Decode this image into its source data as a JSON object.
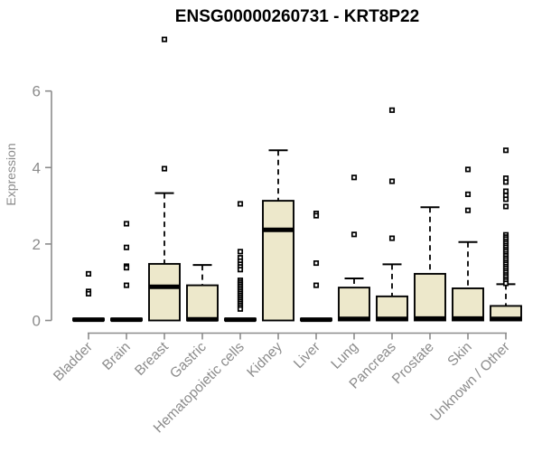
{
  "chart_data": {
    "type": "boxplot",
    "title": "ENSG00000260731 - KRT8P22",
    "ylabel": "Expression",
    "xlabel": "",
    "ylim": [
      0,
      6
    ],
    "yticks": [
      0,
      2,
      4,
      6
    ],
    "grid": false,
    "legend": false,
    "categories": [
      "Bladder",
      "Brain",
      "Breast",
      "Gastric",
      "Hematopoietic cells",
      "Kidney",
      "Liver",
      "Lung",
      "Pancreas",
      "Prostate",
      "Skin",
      "Unknown / Other"
    ],
    "boxes": [
      {
        "category": "Bladder",
        "q1": 0,
        "median": 0.02,
        "q3": 0.05,
        "whisker_low": 0,
        "whisker_high": 0.05,
        "outliers": [
          1.22,
          0.76,
          0.7
        ]
      },
      {
        "category": "Brain",
        "q1": 0,
        "median": 0.02,
        "q3": 0.05,
        "whisker_low": 0,
        "whisker_high": 0.05,
        "outliers": [
          2.53,
          1.91,
          1.42,
          1.38,
          0.92
        ]
      },
      {
        "category": "Breast",
        "q1": 0,
        "median": 0.88,
        "q3": 1.48,
        "whisker_low": 0,
        "whisker_high": 3.33,
        "outliers": [
          3.97,
          7.35
        ]
      },
      {
        "category": "Gastric",
        "q1": 0,
        "median": 0.03,
        "q3": 0.92,
        "whisker_low": 0,
        "whisker_high": 1.45,
        "outliers": []
      },
      {
        "category": "Hematopoietic cells",
        "q1": 0,
        "median": 0.02,
        "q3": 0.05,
        "whisker_low": 0,
        "whisker_high": 0.05,
        "outliers": [
          3.05,
          1.8,
          1.64,
          1.55,
          1.47,
          1.4,
          1.33,
          1.05,
          1.0,
          0.95,
          0.9,
          0.85,
          0.8,
          0.75,
          0.7,
          0.65,
          0.6,
          0.55,
          0.5,
          0.45,
          0.4,
          0.35,
          0.3
        ]
      },
      {
        "category": "Kidney",
        "q1": 0,
        "median": 2.37,
        "q3": 3.13,
        "whisker_low": 0,
        "whisker_high": 4.45,
        "outliers": []
      },
      {
        "category": "Liver",
        "q1": 0,
        "median": 0.02,
        "q3": 0.05,
        "whisker_low": 0,
        "whisker_high": 0.05,
        "outliers": [
          2.8,
          2.74,
          1.5,
          0.92
        ]
      },
      {
        "category": "Lung",
        "q1": 0,
        "median": 0.04,
        "q3": 0.86,
        "whisker_low": 0,
        "whisker_high": 1.1,
        "outliers": [
          3.74,
          2.25
        ]
      },
      {
        "category": "Pancreas",
        "q1": 0,
        "median": 0.04,
        "q3": 0.63,
        "whisker_low": 0,
        "whisker_high": 1.47,
        "outliers": [
          5.5,
          3.64,
          2.15
        ]
      },
      {
        "category": "Prostate",
        "q1": 0,
        "median": 0.05,
        "q3": 1.22,
        "whisker_low": 0,
        "whisker_high": 2.96,
        "outliers": []
      },
      {
        "category": "Skin",
        "q1": 0,
        "median": 0.05,
        "q3": 0.84,
        "whisker_low": 0,
        "whisker_high": 2.05,
        "outliers": [
          3.95,
          3.3,
          2.88
        ]
      },
      {
        "category": "Unknown / Other",
        "q1": 0,
        "median": 0.04,
        "q3": 0.38,
        "whisker_low": 0,
        "whisker_high": 0.95,
        "outliers": [
          4.45,
          3.72,
          3.62,
          3.38,
          3.27,
          3.17,
          2.98,
          2.24,
          2.18,
          2.13,
          2.07,
          2.02,
          1.96,
          1.91,
          1.85,
          1.8,
          1.74,
          1.69,
          1.63,
          1.58,
          1.52,
          1.47,
          1.41,
          1.36,
          1.3,
          1.25,
          1.19,
          1.14,
          1.08,
          1.03,
          0.97
        ]
      }
    ],
    "colors": {
      "box_fill": "#EDE8CB",
      "box_border": "#000000",
      "median": "#000000",
      "outlier_fill": "#FFFFFF",
      "outlier_border": "#000000",
      "axis": "#8C8C8C",
      "tick_text": "#8C8C8C",
      "title_text": "#000000",
      "background": "#FFFFFF"
    }
  }
}
